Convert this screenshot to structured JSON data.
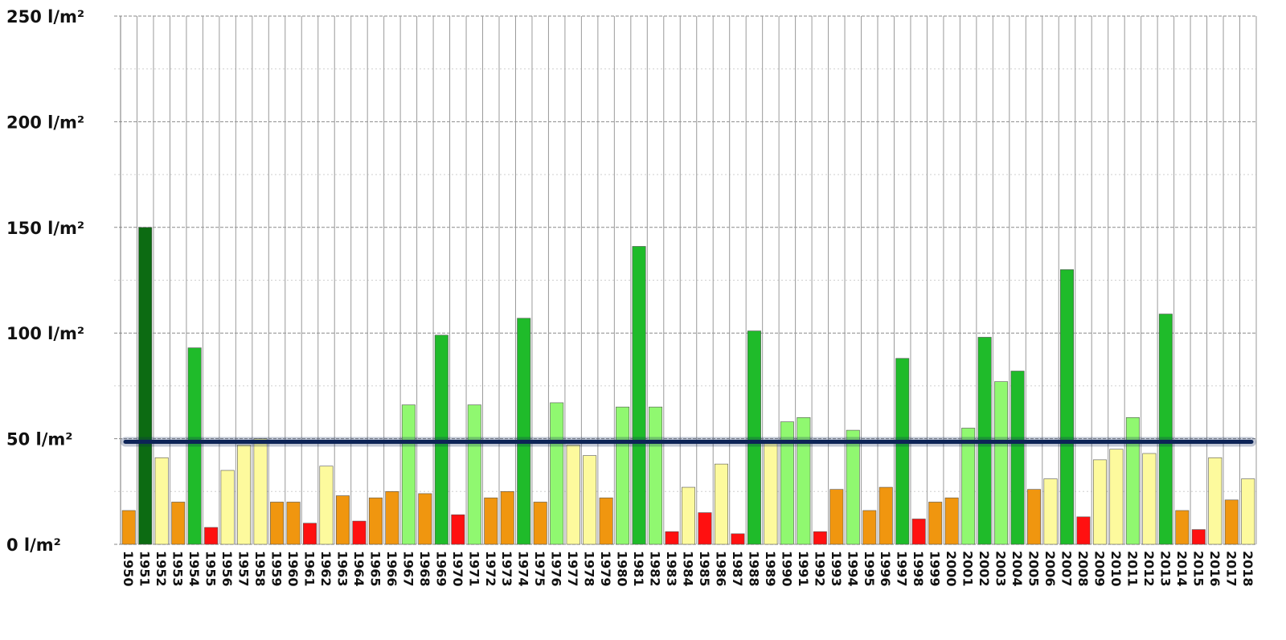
{
  "chart_data": {
    "type": "bar",
    "y_tick_labels": [
      "0 l/m²",
      "50 l/m²",
      "100 l/m²",
      "150 l/m²",
      "200 l/m²",
      "250 l/m²"
    ],
    "y_ticks": [
      0,
      50,
      100,
      150,
      200,
      250
    ],
    "ylim": [
      0,
      250
    ],
    "grid": true,
    "reference_line_value": 48.5,
    "categories": [
      "1950",
      "1951",
      "1952",
      "1953",
      "1954",
      "1955",
      "1956",
      "1957",
      "1958",
      "1959",
      "1960",
      "1961",
      "1962",
      "1963",
      "1964",
      "1965",
      "1966",
      "1967",
      "1968",
      "1969",
      "1970",
      "1971",
      "1972",
      "1973",
      "1974",
      "1975",
      "1976",
      "1977",
      "1978",
      "1979",
      "1980",
      "1981",
      "1982",
      "1983",
      "1984",
      "1985",
      "1986",
      "1987",
      "1988",
      "1989",
      "1990",
      "1991",
      "1992",
      "1993",
      "1994",
      "1995",
      "1996",
      "1997",
      "1998",
      "1999",
      "2000",
      "2001",
      "2002",
      "2003",
      "2004",
      "2005",
      "2006",
      "2007",
      "2008",
      "2009",
      "2010",
      "2011",
      "2012",
      "2013",
      "2014",
      "2015",
      "2016",
      "2017",
      "2018"
    ],
    "values": [
      16,
      150,
      41,
      20,
      93,
      8,
      35,
      47,
      50,
      20,
      20,
      10,
      37,
      23,
      11,
      22,
      25,
      66,
      24,
      99,
      14,
      66,
      22,
      25,
      107,
      20,
      67,
      47,
      42,
      22,
      65,
      141,
      65,
      6,
      27,
      15,
      38,
      5,
      101,
      48,
      58,
      60,
      6,
      26,
      54,
      16,
      27,
      88,
      12,
      20,
      22,
      55,
      98,
      77,
      82,
      26,
      31,
      130,
      13,
      40,
      45,
      60,
      43,
      109,
      16,
      7,
      41,
      21,
      31
    ],
    "colors": [
      "#f0960f",
      "#0c6b12",
      "#fdfa9d",
      "#f0960f",
      "#1fbb2a",
      "#ff1010",
      "#fdfa9d",
      "#fdfa9d",
      "#fdfa9d",
      "#f0960f",
      "#f0960f",
      "#ff1010",
      "#fdfa9d",
      "#f0960f",
      "#ff1010",
      "#f0960f",
      "#f0960f",
      "#90f870",
      "#f0960f",
      "#1fbb2a",
      "#ff1010",
      "#90f870",
      "#f0960f",
      "#f0960f",
      "#1fbb2a",
      "#f0960f",
      "#90f870",
      "#fdfa9d",
      "#fdfa9d",
      "#f0960f",
      "#90f870",
      "#1fbb2a",
      "#90f870",
      "#ff1010",
      "#fdfa9d",
      "#ff1010",
      "#fdfa9d",
      "#ff1010",
      "#1fbb2a",
      "#fdfa9d",
      "#90f870",
      "#90f870",
      "#ff1010",
      "#f0960f",
      "#90f870",
      "#f0960f",
      "#f0960f",
      "#1fbb2a",
      "#ff1010",
      "#f0960f",
      "#f0960f",
      "#90f870",
      "#1fbb2a",
      "#90f870",
      "#1fbb2a",
      "#f0960f",
      "#fdfa9d",
      "#1fbb2a",
      "#ff1010",
      "#fdfa9d",
      "#fdfa9d",
      "#90f870",
      "#fdfa9d",
      "#1fbb2a",
      "#f0960f",
      "#ff1010",
      "#fdfa9d",
      "#f0960f",
      "#fdfa9d"
    ],
    "reference_line_color": "#0d2457"
  }
}
